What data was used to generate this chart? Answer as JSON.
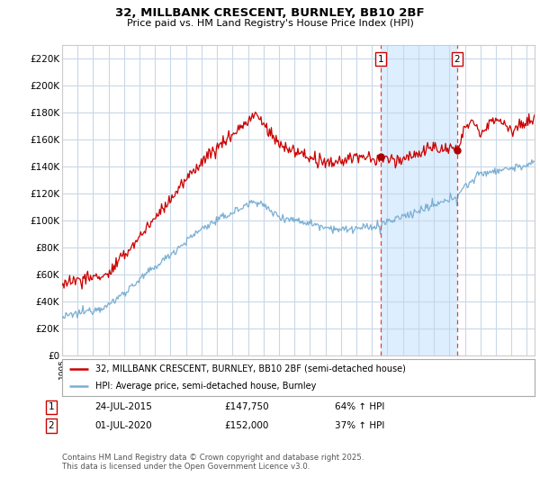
{
  "title": "32, MILLBANK CRESCENT, BURNLEY, BB10 2BF",
  "subtitle": "Price paid vs. HM Land Registry's House Price Index (HPI)",
  "ylim": [
    0,
    230000
  ],
  "yticks": [
    0,
    20000,
    40000,
    60000,
    80000,
    100000,
    120000,
    140000,
    160000,
    180000,
    200000,
    220000
  ],
  "ytick_labels": [
    "£0",
    "£20K",
    "£40K",
    "£60K",
    "£80K",
    "£100K",
    "£120K",
    "£140K",
    "£160K",
    "£180K",
    "£200K",
    "£220K"
  ],
  "plot_bg": "#ffffff",
  "grid_color": "#c8d8e8",
  "shade_color": "#ddeeff",
  "line1_color": "#cc0000",
  "line2_color": "#7aafd4",
  "vline_color": "#dd4444",
  "marker1_date": 2015.56,
  "marker2_date": 2020.5,
  "marker1_label": "1",
  "marker2_label": "2",
  "marker_dot_color": "#aa0000",
  "legend_line1": "32, MILLBANK CRESCENT, BURNLEY, BB10 2BF (semi-detached house)",
  "legend_line2": "HPI: Average price, semi-detached house, Burnley",
  "table_row1": [
    "1",
    "24-JUL-2015",
    "£147,750",
    "64% ↑ HPI"
  ],
  "table_row2": [
    "2",
    "01-JUL-2020",
    "£152,000",
    "37% ↑ HPI"
  ],
  "footer": "Contains HM Land Registry data © Crown copyright and database right 2025.\nThis data is licensed under the Open Government Licence v3.0.",
  "xmin": 1995,
  "xmax": 2025.5,
  "marker1_prop_val": 147750,
  "marker1_hpi_val": 90000,
  "marker2_prop_val": 152000,
  "marker2_hpi_val": 111000
}
